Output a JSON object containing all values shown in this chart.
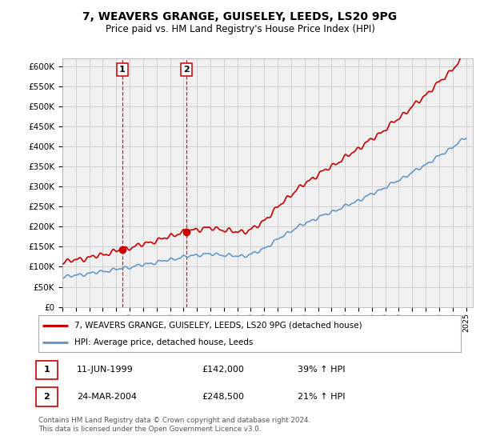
{
  "title": "7, WEAVERS GRANGE, GUISELEY, LEEDS, LS20 9PG",
  "subtitle": "Price paid vs. HM Land Registry's House Price Index (HPI)",
  "legend_line1": "7, WEAVERS GRANGE, GUISELEY, LEEDS, LS20 9PG (detached house)",
  "legend_line2": "HPI: Average price, detached house, Leeds",
  "footnote": "Contains HM Land Registry data © Crown copyright and database right 2024.\nThis data is licensed under the Open Government Licence v3.0.",
  "marker1_label": "1",
  "marker1_date": "11-JUN-1999",
  "marker1_price": "£142,000",
  "marker1_hpi": "39% ↑ HPI",
  "marker1_year": 1999.44,
  "marker1_value": 142000,
  "marker2_label": "2",
  "marker2_date": "24-MAR-2004",
  "marker2_price": "£248,500",
  "marker2_hpi": "21% ↑ HPI",
  "marker2_year": 2004.22,
  "marker2_value": 248500,
  "red_color": "#cc0000",
  "blue_color": "#6699cc",
  "grid_color": "#cccccc",
  "background_color": "#ffffff",
  "plot_bg_color": "#f0f0f0",
  "ylim_min": 0,
  "ylim_max": 620000,
  "xlabel": "",
  "ylabel": ""
}
